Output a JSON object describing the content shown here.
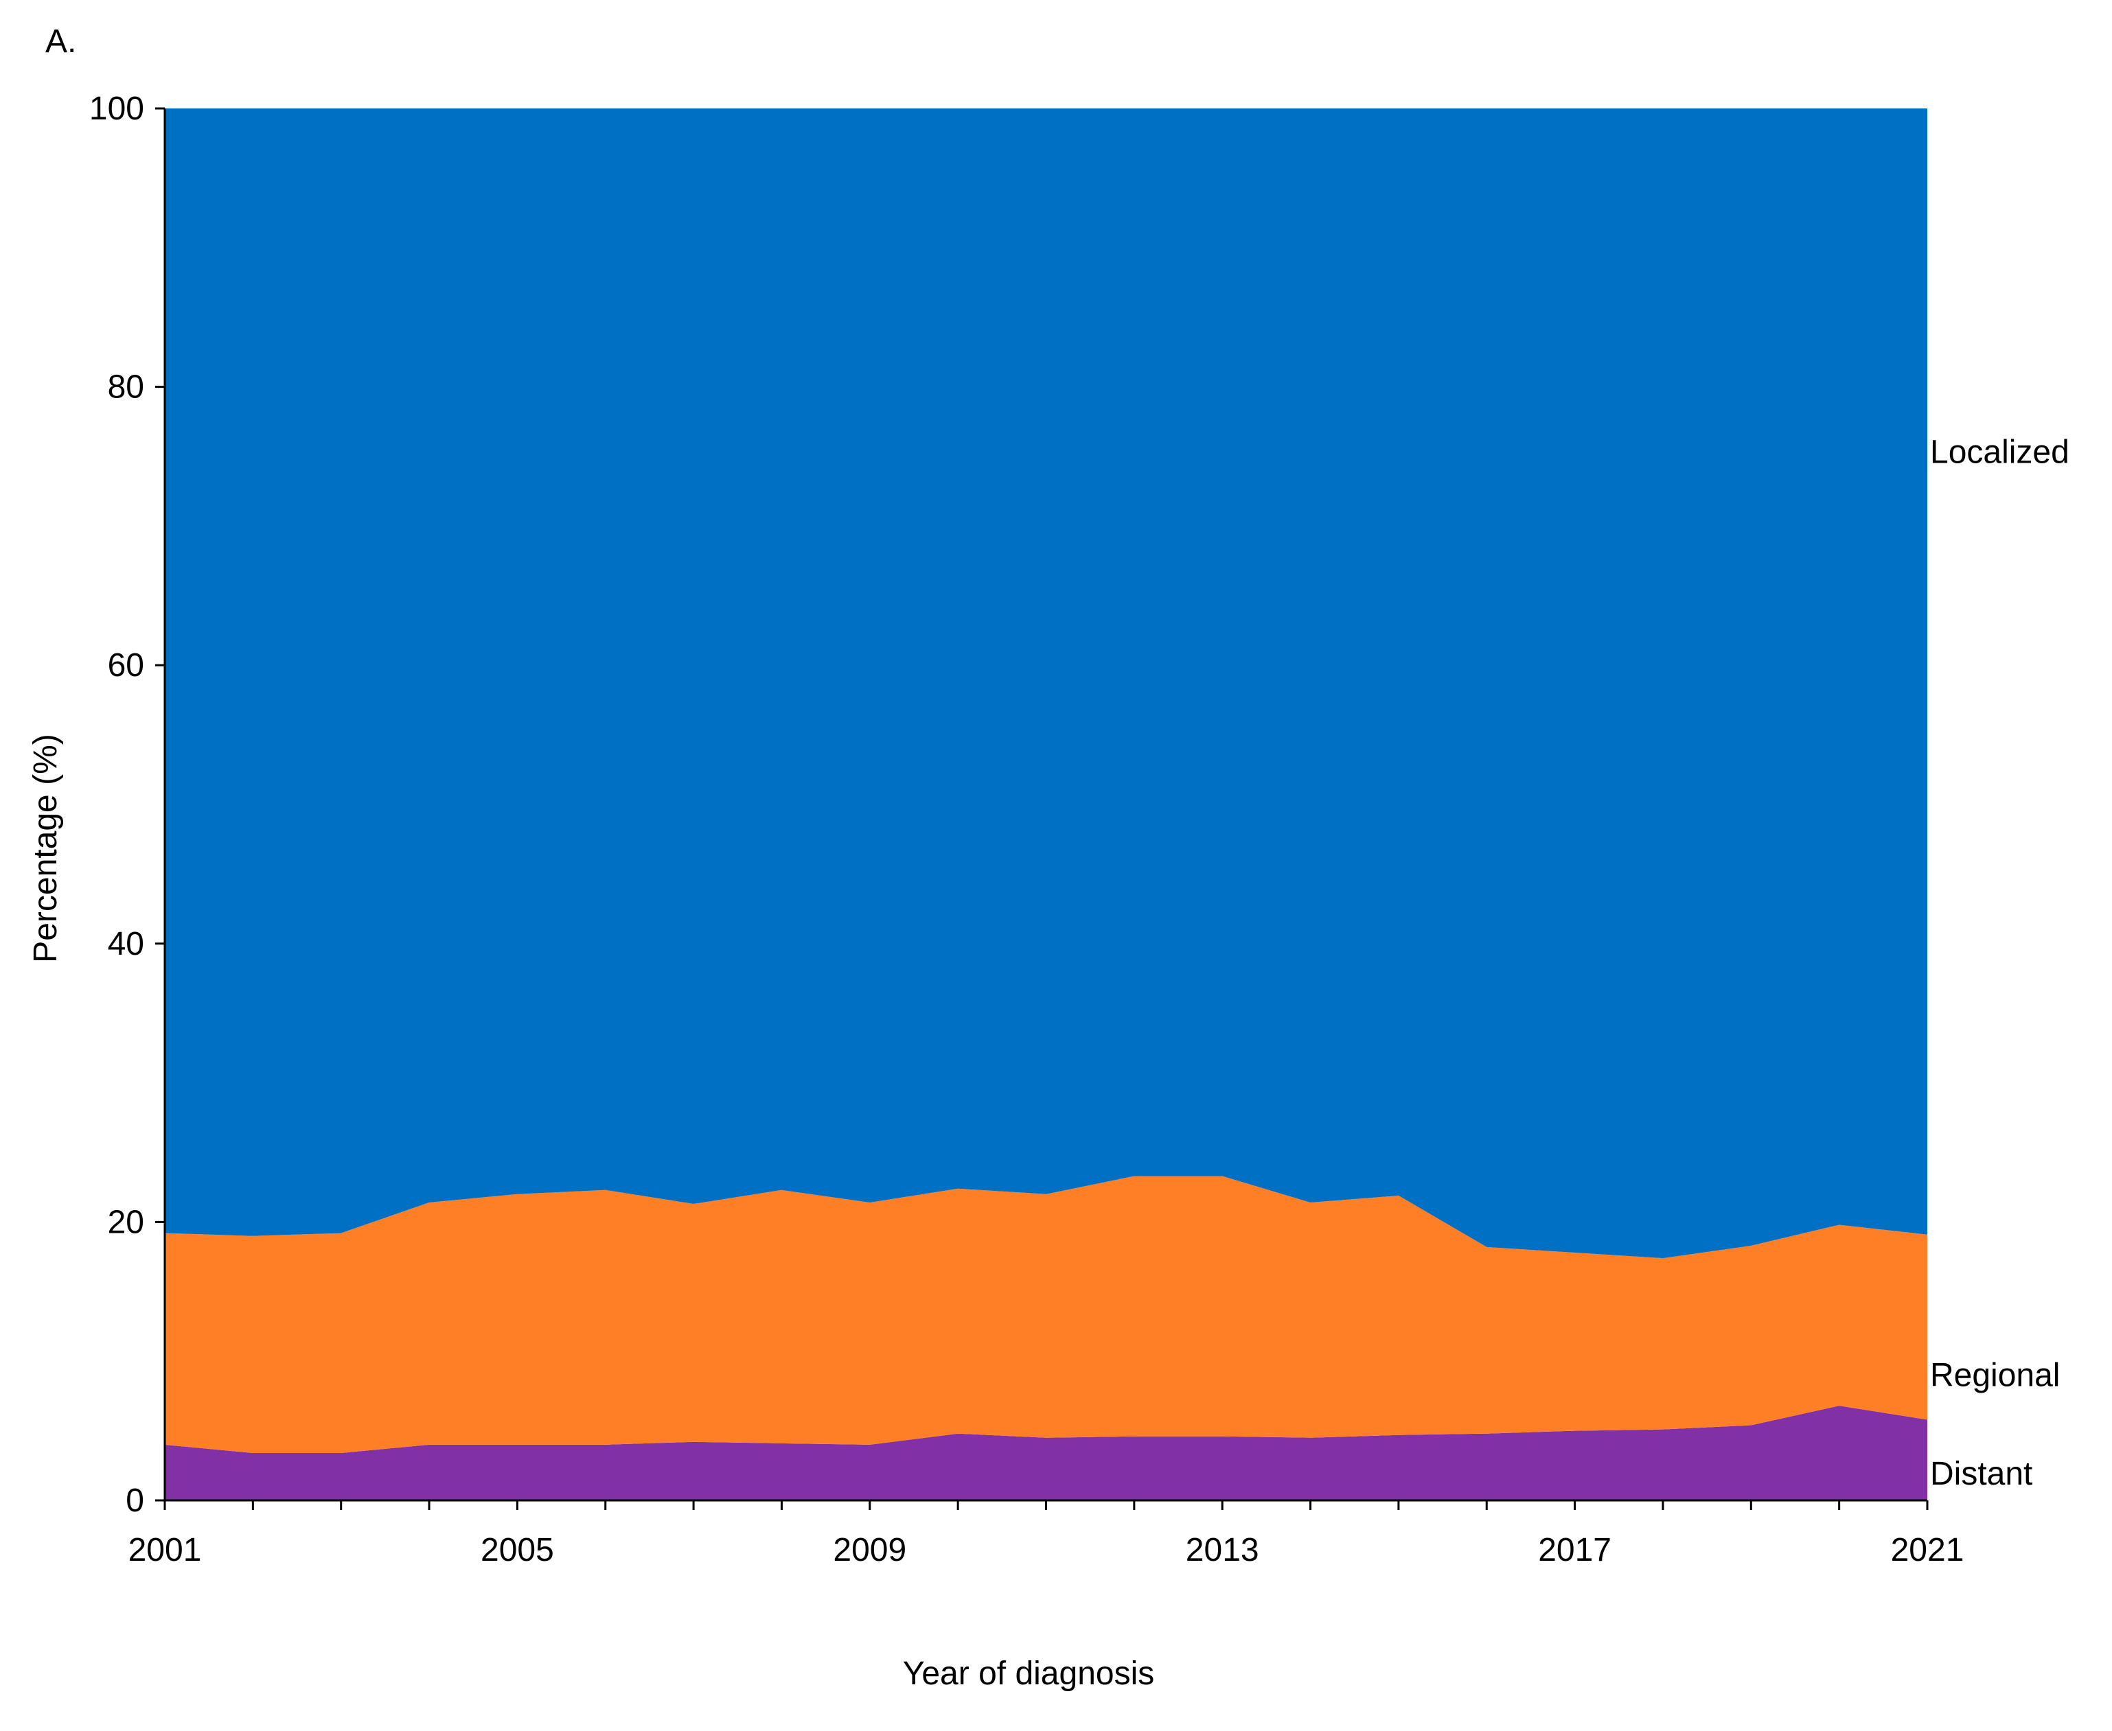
{
  "panel_label": "A.",
  "chart_data": {
    "type": "area",
    "stacked": true,
    "x": [
      2001,
      2002,
      2003,
      2004,
      2005,
      2006,
      2007,
      2008,
      2009,
      2010,
      2011,
      2012,
      2013,
      2014,
      2015,
      2016,
      2017,
      2018,
      2019,
      2020,
      2021
    ],
    "x_tick_labels": [
      "2001",
      "2005",
      "2009",
      "2013",
      "2017",
      "2021"
    ],
    "xlabel": "Year of diagnosis",
    "ylabel": "Percentage (%)",
    "ylim": [
      0,
      100
    ],
    "y_tick_labels": [
      "0",
      "20",
      "40",
      "60",
      "80",
      "100"
    ],
    "grid": false,
    "legend": "direct labels at right edge",
    "series": [
      {
        "name": "Distant",
        "color": "#8230A6",
        "values": [
          4.0,
          3.4,
          3.4,
          4.0,
          4.0,
          4.0,
          4.2,
          4.1,
          4.0,
          4.8,
          4.5,
          4.6,
          4.6,
          4.5,
          4.7,
          4.8,
          5.0,
          5.1,
          5.4,
          6.8,
          5.8
        ]
      },
      {
        "name": "Regional",
        "color": "#FF7F27",
        "values": [
          15.2,
          15.6,
          15.8,
          17.4,
          18.0,
          18.3,
          17.1,
          18.2,
          17.4,
          17.6,
          17.5,
          18.7,
          18.7,
          16.9,
          17.2,
          13.4,
          12.8,
          12.3,
          12.9,
          13.0,
          13.3
        ]
      },
      {
        "name": "Localized",
        "color": "#0070C4",
        "values": [
          80.8,
          81.0,
          80.8,
          78.6,
          78.0,
          77.7,
          78.7,
          77.7,
          78.6,
          77.6,
          78.0,
          76.7,
          76.7,
          78.6,
          78.1,
          81.8,
          82.2,
          82.6,
          81.7,
          80.2,
          80.9
        ]
      }
    ]
  }
}
